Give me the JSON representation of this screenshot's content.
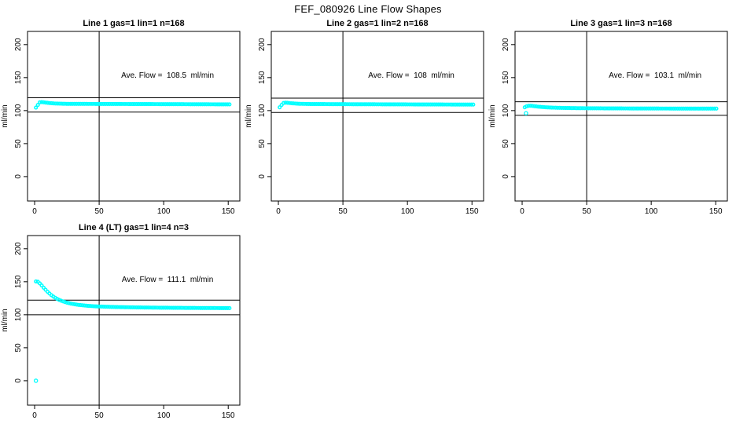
{
  "page_title": "FEF_080926  Line Flow Shapes",
  "colors": {
    "point": "#00ffff",
    "axis": "#000000",
    "text": "#000000",
    "background": "#ffffff"
  },
  "axes": {
    "xlabel": "",
    "ylabel": "ml/min",
    "x_ticks": [
      0,
      50,
      100,
      150
    ],
    "y_ticks": [
      0,
      50,
      100,
      150,
      200
    ],
    "xlim": [
      -5.5,
      159
    ],
    "ylim": [
      -37,
      220
    ],
    "grid": false
  },
  "chart_data": [
    {
      "type": "scatter",
      "title": "Line 1 gas=1 lin=1 n=168",
      "ylabel": "ml/min",
      "n": 168,
      "ave_flow_ml_min": 108.5,
      "annotation": "Ave. Flow =  108.5  ml/min",
      "annotation_xy": [
        103,
        150
      ],
      "vline_x": 50,
      "hlines": [
        119.4,
        97.7
      ],
      "marker": "open-circle",
      "point_color": "#00ffff",
      "x_range": [
        1,
        151
      ],
      "x_step": 1.5,
      "keypoints": [
        [
          1,
          104.5
        ],
        [
          2,
          106.5
        ],
        [
          3,
          110.5
        ],
        [
          4,
          112.5
        ],
        [
          5,
          113
        ],
        [
          7,
          112.6
        ],
        [
          9,
          112
        ],
        [
          12,
          111.3
        ],
        [
          16,
          110.7
        ],
        [
          25,
          110.2
        ],
        [
          60,
          110
        ],
        [
          110,
          109.7
        ],
        [
          151,
          109.4
        ]
      ],
      "outliers": []
    },
    {
      "type": "scatter",
      "title": "Line 2 gas=1 lin=2 n=168",
      "ylabel": "ml/min",
      "n": 168,
      "ave_flow_ml_min": 108,
      "annotation": "Ave. Flow =  108  ml/min",
      "annotation_xy": [
        103,
        150
      ],
      "vline_x": 50,
      "hlines": [
        118.8,
        97.2
      ],
      "marker": "open-circle",
      "point_color": "#00ffff",
      "x_range": [
        1,
        151
      ],
      "x_step": 1.5,
      "keypoints": [
        [
          1,
          105
        ],
        [
          2,
          107
        ],
        [
          3,
          110
        ],
        [
          4,
          111.5
        ],
        [
          5,
          112
        ],
        [
          7,
          111.8
        ],
        [
          9,
          111.3
        ],
        [
          12,
          110.8
        ],
        [
          16,
          110.3
        ],
        [
          25,
          109.9
        ],
        [
          60,
          109.6
        ],
        [
          110,
          109.3
        ],
        [
          151,
          109.1
        ]
      ],
      "outliers": []
    },
    {
      "type": "scatter",
      "title": "Line 3 gas=1 lin=3 n=168",
      "ylabel": "ml/min",
      "n": 168,
      "ave_flow_ml_min": 103.1,
      "annotation": "Ave. Flow =  103.1  ml/min",
      "annotation_xy": [
        103,
        150
      ],
      "vline_x": 50,
      "hlines": [
        113.4,
        92.8
      ],
      "marker": "open-circle",
      "point_color": "#00ffff",
      "x_range": [
        2,
        151
      ],
      "x_step": 1.5,
      "keypoints": [
        [
          2,
          105
        ],
        [
          4,
          107
        ],
        [
          6,
          107.5
        ],
        [
          8,
          107
        ],
        [
          12,
          106
        ],
        [
          16,
          105.3
        ],
        [
          22,
          104.6
        ],
        [
          32,
          104
        ],
        [
          45,
          103.6
        ],
        [
          70,
          103.3
        ],
        [
          110,
          103.1
        ],
        [
          151,
          103
        ]
      ],
      "outliers": [
        [
          3,
          96
        ]
      ]
    },
    {
      "type": "scatter",
      "title": "Line 4 (LT) gas=1 lin=4 n=3",
      "ylabel": "ml/min",
      "n": 3,
      "ave_flow_ml_min": 111.1,
      "annotation": "Ave. Flow =  111.1  ml/min",
      "annotation_xy": [
        103,
        150
      ],
      "vline_x": 50,
      "hlines": [
        122.2,
        100
      ],
      "marker": "open-circle",
      "point_color": "#00ffff",
      "x_range": [
        1,
        151
      ],
      "x_step": 1.5,
      "keypoints": [
        [
          1,
          150.5
        ],
        [
          2,
          150.5
        ],
        [
          3,
          149.5
        ],
        [
          5,
          145.5
        ],
        [
          7,
          141
        ],
        [
          9,
          136.8
        ],
        [
          11,
          133
        ],
        [
          13,
          129.7
        ],
        [
          15,
          126.9
        ],
        [
          17,
          124.5
        ],
        [
          19,
          122.5
        ],
        [
          21,
          120.9
        ],
        [
          23,
          119.5
        ],
        [
          25,
          118.3
        ],
        [
          28,
          116.9
        ],
        [
          31,
          115.8
        ],
        [
          35,
          114.7
        ],
        [
          40,
          113.7
        ],
        [
          45,
          113
        ],
        [
          50,
          112.5
        ],
        [
          60,
          111.8
        ],
        [
          75,
          111.2
        ],
        [
          95,
          110.7
        ],
        [
          120,
          110.3
        ],
        [
          151,
          110
        ]
      ],
      "outliers": [
        [
          1,
          0
        ]
      ]
    }
  ]
}
